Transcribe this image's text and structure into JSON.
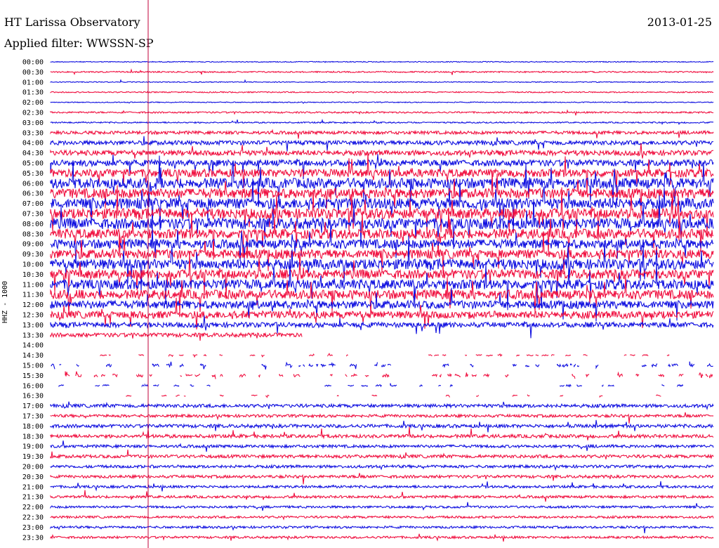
{
  "header": {
    "title": "HT Larissa Observatory",
    "date": "2013-01-25",
    "filter": "Applied filter: WWSSN-SP"
  },
  "channel_label": "HHZ - 1000",
  "colors": {
    "blue": "#1010e0",
    "red": "#f01040",
    "marker": "#c0003a"
  },
  "rows": [
    "00:00",
    "00:30",
    "01:00",
    "01:30",
    "02:00",
    "02:30",
    "03:00",
    "03:30",
    "04:00",
    "04:30",
    "05:00",
    "05:30",
    "06:00",
    "06:30",
    "07:00",
    "07:30",
    "08:00",
    "08:30",
    "09:00",
    "09:30",
    "10:00",
    "10:30",
    "11:00",
    "11:30",
    "12:00",
    "12:30",
    "13:00",
    "13:30",
    "14:00",
    "14:30",
    "15:00",
    "15:30",
    "16:00",
    "16:30",
    "17:00",
    "17:30",
    "18:00",
    "18:30",
    "19:00",
    "19:30",
    "20:00",
    "20:30",
    "21:00",
    "21:30",
    "22:00",
    "22:30",
    "23:00",
    "23:30"
  ],
  "row_activity": [
    0.08,
    0.12,
    0.08,
    0.1,
    0.08,
    0.14,
    0.12,
    0.28,
    0.38,
    0.45,
    0.55,
    0.7,
    0.9,
    0.85,
    0.95,
    0.9,
    0.95,
    0.85,
    0.8,
    0.8,
    0.9,
    0.8,
    0.85,
    0.8,
    0.7,
    0.65,
    0.45,
    0.35,
    0.05,
    0.1,
    0.25,
    0.25,
    0.15,
    0.12,
    0.3,
    0.25,
    0.3,
    0.3,
    0.25,
    0.28,
    0.25,
    0.25,
    0.22,
    0.22,
    0.2,
    0.2,
    0.2,
    0.2
  ],
  "row_coverage": [
    1,
    1,
    1,
    1,
    1,
    1,
    1,
    1,
    1,
    1,
    1,
    1,
    1,
    1,
    1,
    1,
    1,
    1,
    1,
    1,
    1,
    1,
    1,
    1,
    1,
    1,
    1,
    0.38,
    0,
    0.3,
    0.4,
    0.35,
    0.3,
    0.25,
    1,
    1,
    1,
    1,
    1,
    1,
    1,
    1,
    1,
    1,
    1,
    1,
    1,
    1
  ]
}
